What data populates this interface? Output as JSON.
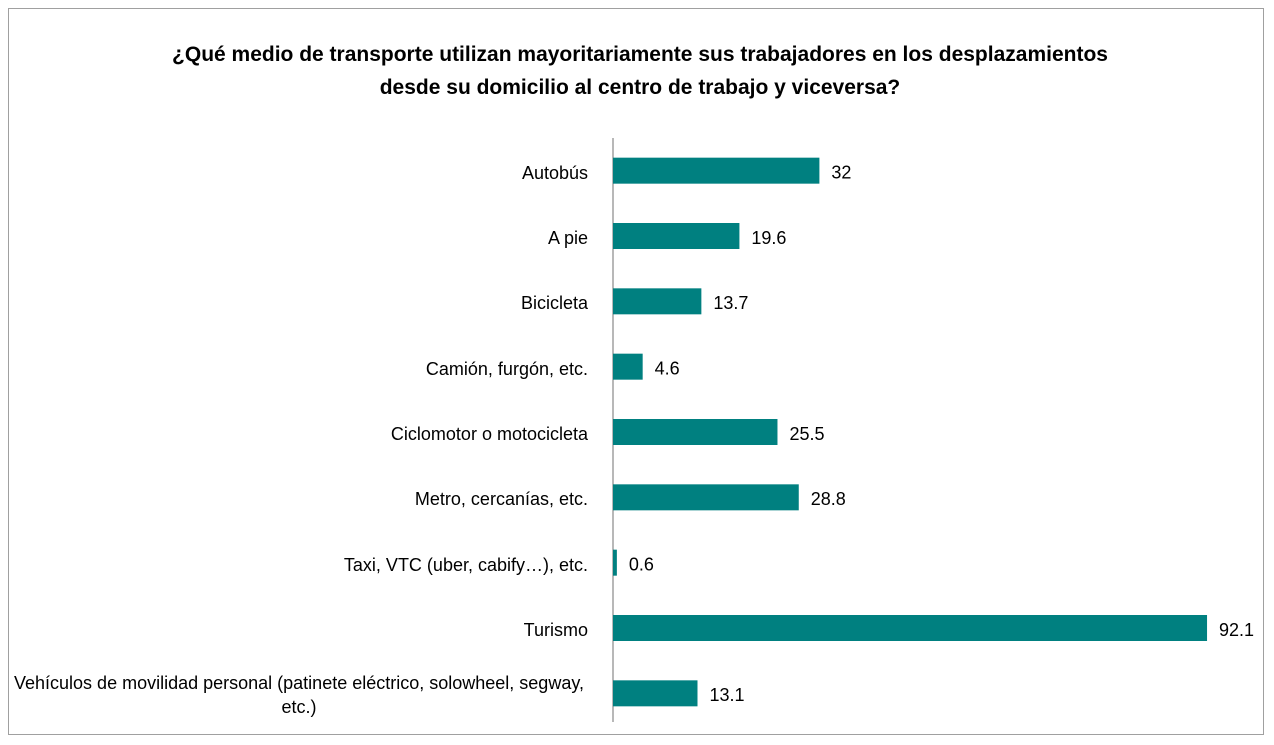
{
  "chart_data": {
    "type": "bar",
    "orientation": "horizontal",
    "title": "¿Qué medio de transporte utilizan mayoritariamente sus trabajadores en los desplazamientos desde su domicilio al centro de trabajo y viceversa?",
    "categories": [
      "Autobús",
      "A pie",
      "Bicicleta",
      "Camión, furgón, etc.",
      "Ciclomotor o motocicleta",
      "Metro, cercanías, etc.",
      "Taxi, VTC (uber, cabify…), etc.",
      "Turismo",
      "Vehículos de movilidad personal (patinete eléctrico, solowheel, segway, etc.)"
    ],
    "values": [
      32,
      19.6,
      13.7,
      4.6,
      25.5,
      28.8,
      0.6,
      92.1,
      13.1
    ],
    "color": "#008080",
    "xlim": [
      0,
      100
    ]
  }
}
